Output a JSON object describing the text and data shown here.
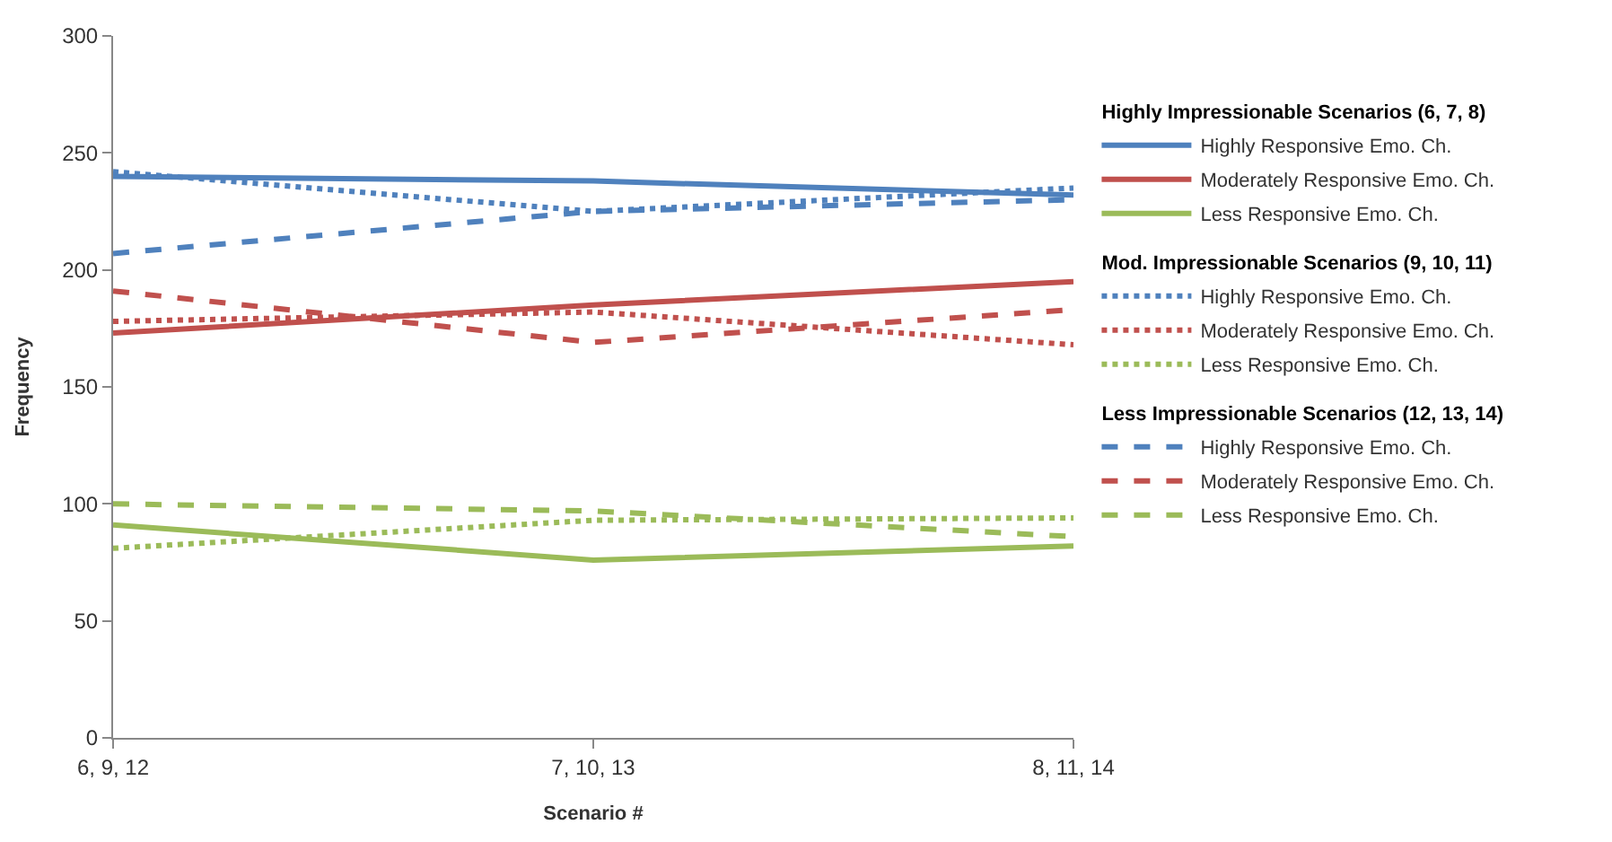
{
  "chart_data": {
    "type": "line",
    "xlabel": "Scenario #",
    "ylabel": "Frequency",
    "categories": [
      "6, 9, 12",
      "7, 10, 13",
      "8, 11, 14"
    ],
    "legend_title": [
      "Highly Impressionable Scenarios (6, 7, 8)",
      "Mod. Impressionable Scenarios (9, 10, 11)",
      "Less Impressionable Scenarios (12, 13, 14)"
    ],
    "ylim": [
      0,
      300
    ],
    "yticks": [
      0,
      50,
      100,
      150,
      200,
      250,
      300
    ],
    "legend": "right",
    "marker": "none",
    "series": [
      {
        "name": "Highly Responsive Emo. Ch.",
        "color": "#4f81bd",
        "line_style": "solid",
        "values": [
          240,
          238,
          232
        ]
      },
      {
        "name": "Moderately Responsive Emo. Ch.",
        "color": "#c0504d",
        "line_style": "solid",
        "values": [
          173,
          185,
          195
        ]
      },
      {
        "name": "Less Responsive Emo. Ch.",
        "color": "#9bbb59",
        "line_style": "solid",
        "values": [
          91,
          76,
          82
        ]
      },
      {
        "name": "Highly Responsive Emo. Ch.",
        "color": "#4f81bd",
        "line_style": "dotted",
        "values": [
          242,
          225,
          235
        ]
      },
      {
        "name": "Moderately Responsive Emo. Ch.",
        "color": "#c0504d",
        "line_style": "dotted",
        "values": [
          178,
          182,
          168
        ]
      },
      {
        "name": "Less Responsive Emo. Ch.",
        "color": "#9bbb59",
        "line_style": "dotted",
        "values": [
          81,
          93,
          94
        ]
      },
      {
        "name": "Highly Responsive Emo. Ch.",
        "color": "#4f81bd",
        "line_style": "dashed",
        "values": [
          207,
          225,
          230
        ]
      },
      {
        "name": "Moderately Responsive Emo. Ch.",
        "color": "#c0504d",
        "line_style": "dashed",
        "values": [
          191,
          169,
          183
        ]
      },
      {
        "name": "Less Responsive Emo. Ch.",
        "color": "#9bbb59",
        "line_style": "dashed",
        "values": [
          100,
          97,
          86
        ]
      }
    ]
  }
}
